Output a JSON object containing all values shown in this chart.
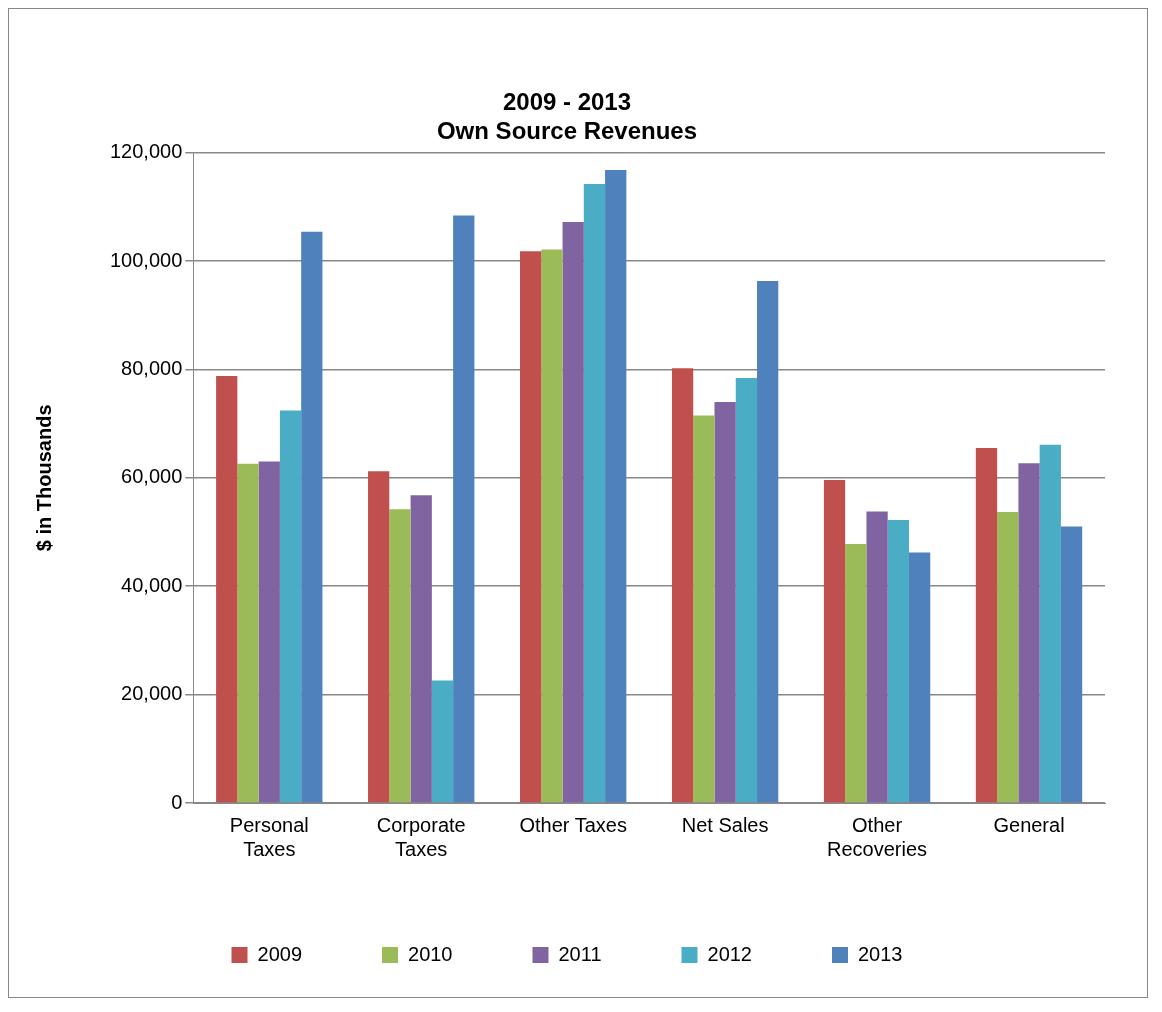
{
  "chart_data": {
    "type": "bar",
    "title": "2009 - 2013\nOwn Source Revenues",
    "ylabel": "$ in Thousands",
    "categories": [
      "Personal Taxes",
      "Corporate Taxes",
      "Other Taxes",
      "Net Sales",
      "Other Recoveries",
      "General"
    ],
    "series": [
      {
        "name": "2009",
        "color": "#c0504d",
        "values": [
          78800,
          61200,
          101800,
          80200,
          59600,
          65500
        ]
      },
      {
        "name": "2010",
        "color": "#9bbb59",
        "values": [
          62600,
          54200,
          102100,
          71500,
          47800,
          53700
        ]
      },
      {
        "name": "2011",
        "color": "#8064a2",
        "values": [
          63000,
          56800,
          107200,
          74000,
          53800,
          62700
        ]
      },
      {
        "name": "2012",
        "color": "#4bacc6",
        "values": [
          72400,
          22600,
          114200,
          78400,
          52200,
          66100
        ]
      },
      {
        "name": "2013",
        "color": "#4f81bd",
        "values": [
          105400,
          108400,
          116800,
          96300,
          46200,
          51000
        ]
      }
    ],
    "ylim": [
      0,
      120000
    ],
    "yticks": [
      0,
      {
        "value": 20000,
        "label": "20,000"
      },
      {
        "value": 40000,
        "label": "40,000"
      },
      {
        "value": 60000,
        "label": "60,000"
      },
      {
        "value": 80000,
        "label": "80,000"
      },
      {
        "value": 100000,
        "label": "100,000"
      },
      {
        "value": 120000,
        "label": "120,000"
      }
    ],
    "grid": "y",
    "legend": "bottom"
  }
}
